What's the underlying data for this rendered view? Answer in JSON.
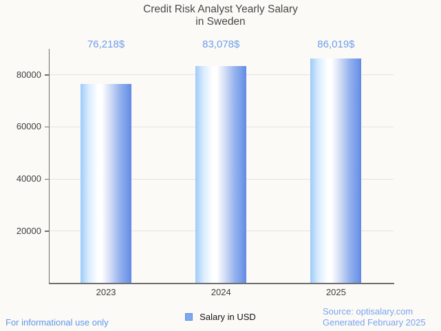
{
  "title": {
    "line1": "Credit Risk Analyst Yearly Salary",
    "line2": "in Sweden"
  },
  "chart_data": {
    "type": "bar",
    "title": "Credit Risk Analyst Yearly Salary in Sweden",
    "categories": [
      "2023",
      "2024",
      "2025"
    ],
    "values": [
      76218,
      83078,
      86019
    ],
    "value_labels": [
      "76,218$",
      "83,078$",
      "86,019$"
    ],
    "series_name": "Salary in USD",
    "xlabel": "",
    "ylabel": "",
    "ylim": [
      0,
      88000
    ],
    "yticks": [
      20000,
      40000,
      60000,
      80000
    ],
    "grid": true,
    "legend_position": "bottom-center"
  },
  "legend": {
    "label": "Salary in USD"
  },
  "footer": {
    "left": "For informational use only",
    "source_line1": "Source: optisalary.com",
    "source_line2": "Generated February 2025"
  },
  "colors": {
    "background": "#fbfaf6",
    "title_text": "#484848",
    "axis_text": "#3d3d3d",
    "axis_line": "#6f6f6f",
    "gridline": "#e4e3df",
    "value_label_blue": "#6d9eeb",
    "footer_blue": "#5f96e8",
    "source_blue": "#7aa4ef",
    "bar_gradient_left": "#9ecbf7",
    "bar_gradient_mid": "#ffffff",
    "bar_gradient_right": "#6b93e7",
    "legend_marker_fill": "#7fa9ee",
    "legend_marker_border": "#5c8ede"
  }
}
